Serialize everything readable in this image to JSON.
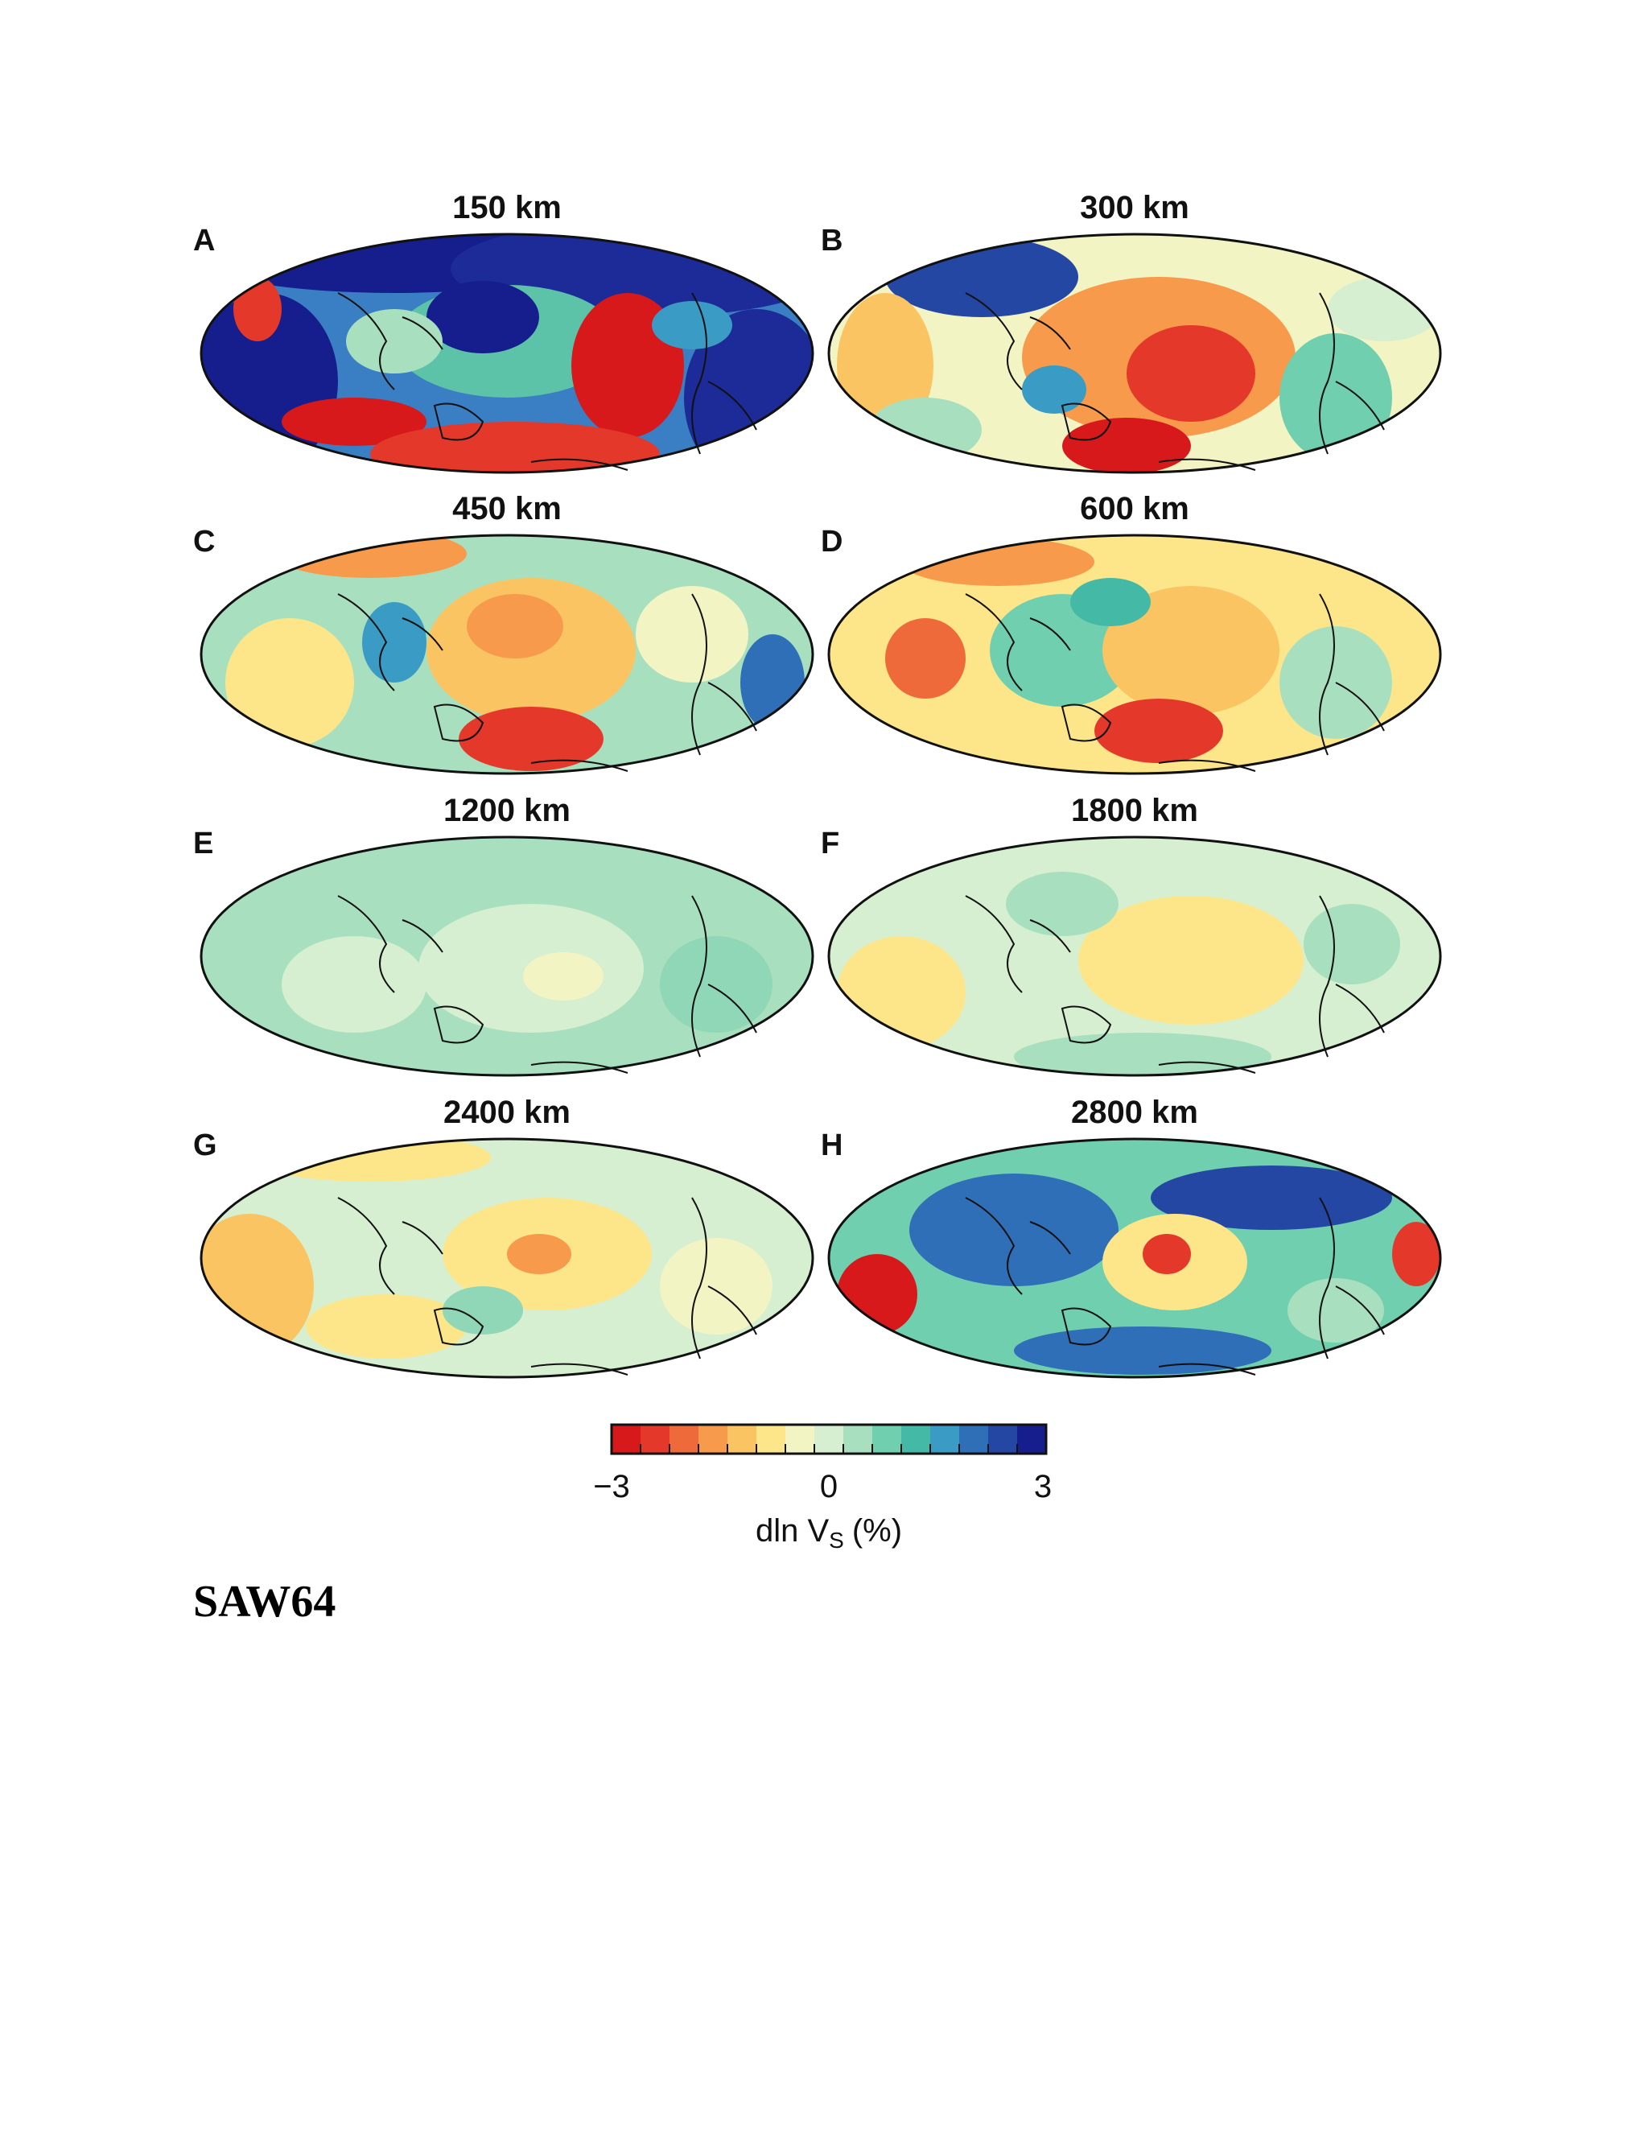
{
  "figure": {
    "panels": [
      {
        "letter": "A",
        "depth": "150 km"
      },
      {
        "letter": "B",
        "depth": "300 km"
      },
      {
        "letter": "C",
        "depth": "450 km"
      },
      {
        "letter": "D",
        "depth": "600 km"
      },
      {
        "letter": "E",
        "depth": "1200 km"
      },
      {
        "letter": "F",
        "depth": "1800 km"
      },
      {
        "letter": "G",
        "depth": "2400 km"
      },
      {
        "letter": "H",
        "depth": "2800 km"
      }
    ],
    "colorbar": {
      "min_label": "−3",
      "mid_label": "0",
      "max_label": "3",
      "range": [
        -3,
        3
      ],
      "label": "dln V",
      "label_sub": "S",
      "label_unit": "(%)",
      "colors": [
        "#d7191c",
        "#e4392a",
        "#ef6a3a",
        "#f79a4b",
        "#fbc463",
        "#fde68a",
        "#f3f4c4",
        "#d6efd0",
        "#a8e0bf",
        "#6fcfae",
        "#44b9a5",
        "#3a9bc4",
        "#2f6fb8",
        "#2347a3",
        "#151e8c"
      ]
    }
  },
  "caption": {
    "model_name": "SAW64"
  }
}
